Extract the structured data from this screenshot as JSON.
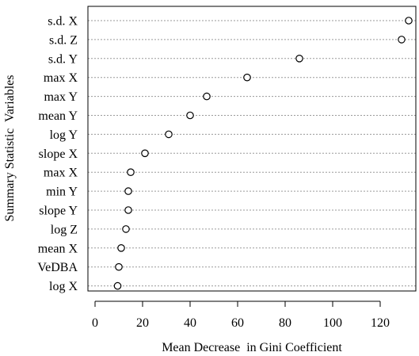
{
  "chart_data": {
    "type": "scatter",
    "variant": "dotchart",
    "title": "",
    "xlabel": "Mean Decrease  in Gini Coefficient",
    "ylabel": "Summary Statistic  Variables",
    "xlim": [
      -3,
      135
    ],
    "xticks": [
      0,
      20,
      40,
      60,
      80,
      100,
      120
    ],
    "grid": "dotted horizontal lines per row",
    "marker": "open circle",
    "categories": [
      "s.d. X",
      "s.d. Z",
      "s.d. Y",
      "max X",
      "max Y",
      "mean Y",
      "log Y",
      "slope X",
      "max X",
      "min Y",
      "slope Y",
      "log Z",
      "mean X",
      "VeDBA",
      "log X"
    ],
    "values": [
      132,
      129,
      86,
      64,
      47,
      40,
      31,
      21,
      15,
      14,
      14,
      13,
      11,
      10,
      9.5
    ]
  }
}
